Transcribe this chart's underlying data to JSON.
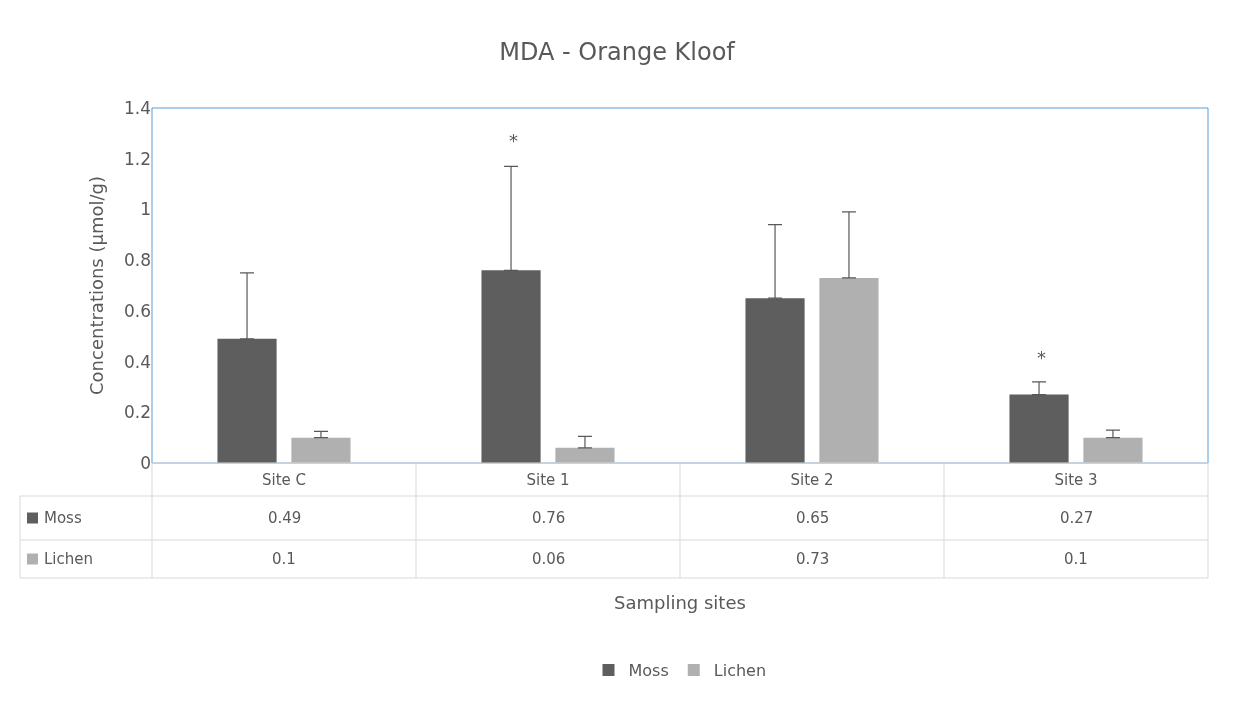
{
  "chart_data": {
    "type": "bar",
    "title": "MDA - Orange Kloof",
    "ylabel": "Concentrations (µmol/g)",
    "categories": [
      "Site C",
      "Site 1",
      "Site 2",
      "Site 3"
    ],
    "series": [
      {
        "name": "Moss",
        "color": "#5e5e5e",
        "values": [
          0.49,
          0.76,
          0.65,
          0.27
        ],
        "errors": [
          [
            0.49,
            0.75
          ],
          [
            0.76,
            1.17
          ],
          [
            0.65,
            0.94
          ],
          [
            0.27,
            0.32
          ]
        ]
      },
      {
        "name": "Lichen",
        "color": "#b0b0b0",
        "values": [
          0.1,
          0.06,
          0.73,
          0.1
        ],
        "errors": [
          [
            0.1,
            0.125
          ],
          [
            0.06,
            0.105
          ],
          [
            0.73,
            0.99
          ],
          [
            0.1,
            0.13
          ]
        ]
      }
    ],
    "annotations": [
      "*",
      "*",
      "Sampling sites"
    ],
    "ylim": [
      0,
      1.4
    ],
    "yticks": [
      0,
      0.2,
      0.4,
      0.6,
      0.8,
      1,
      1.2,
      1.4
    ],
    "data_labels": true,
    "grid": false,
    "legend": "bottom"
  }
}
